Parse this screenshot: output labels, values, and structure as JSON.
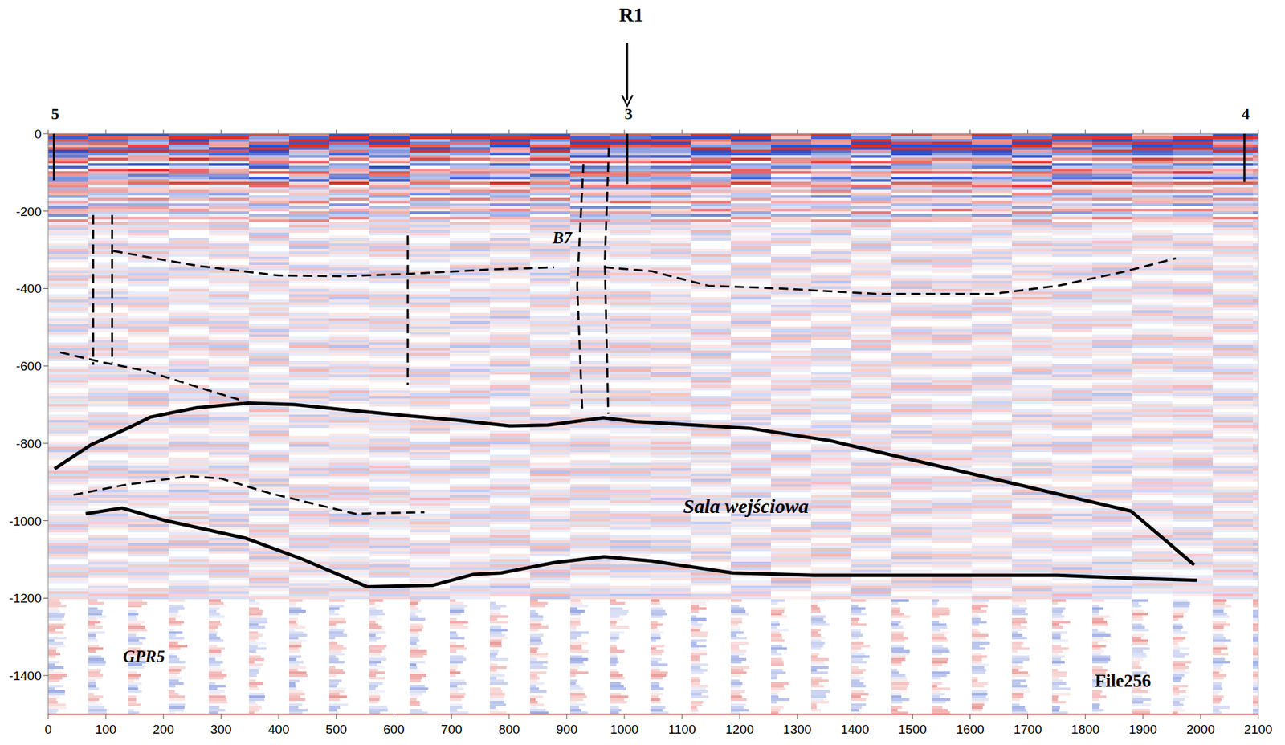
{
  "chart_data": {
    "type": "line",
    "xlim": [
      0,
      2100
    ],
    "ylim": [
      -1500,
      0
    ],
    "xticks": [
      0,
      100,
      200,
      300,
      400,
      500,
      600,
      700,
      800,
      900,
      1000,
      1100,
      1200,
      1300,
      1400,
      1500,
      1600,
      1700,
      1800,
      1900,
      2000,
      2100
    ],
    "yticks": [
      -1400,
      -1200,
      -1000,
      -800,
      -600,
      -400,
      -200,
      0
    ],
    "grid": false,
    "series": [
      {
        "color": "#000000",
        "line_style": "solid",
        "x": [
          11,
          75,
          138,
          178,
          258,
          347,
          427,
          526,
          624,
          709,
          801,
          867,
          963,
          1019,
          1216,
          1357,
          1879,
          1989
        ],
        "values": [
          -866,
          -803,
          -761,
          -732,
          -708,
          -696,
          -700,
          -715,
          -729,
          -740,
          -755,
          -753,
          -734,
          -744,
          -761,
          -793,
          -975,
          -1114
        ]
      },
      {
        "color": "#000000",
        "line_style": "solid",
        "x": [
          65,
          128,
          202,
          342,
          441,
          554,
          667,
          737,
          786,
          878,
          965,
          1047,
          1188,
          1329,
          1611,
          1752,
          1865,
          1994
        ],
        "values": [
          -982,
          -967,
          -999,
          -1045,
          -1099,
          -1171,
          -1167,
          -1139,
          -1135,
          -1108,
          -1093,
          -1104,
          -1135,
          -1141,
          -1141,
          -1141,
          -1148,
          -1154
        ]
      },
      {
        "color": "#000000",
        "line_style": "dashed",
        "x": [
          113,
          258,
          399,
          511,
          624,
          765,
          878
        ],
        "values": [
          -303,
          -341,
          -366,
          -368,
          -362,
          -351,
          -345
        ]
      },
      {
        "color": "#000000",
        "line_style": "dashed",
        "x": [
          965,
          1047,
          1146,
          1259,
          1442,
          1639,
          1752,
          1865,
          1957
        ],
        "values": [
          -345,
          -355,
          -393,
          -399,
          -414,
          -414,
          -393,
          -357,
          -322
        ]
      },
      {
        "color": "#000000",
        "line_style": "dashed",
        "x": [
          21,
          89,
          173,
          258,
          331
        ],
        "values": [
          -565,
          -589,
          -614,
          -654,
          -687
        ]
      },
      {
        "color": "#000000",
        "line_style": "dashed",
        "x": [
          44,
          131,
          244,
          300,
          385,
          533,
          653
        ],
        "values": [
          -933,
          -908,
          -885,
          -891,
          -929,
          -982,
          -978
        ]
      },
      {
        "color": "#000000",
        "line_style": "dashed",
        "x": [
          78,
          78
        ],
        "values": [
          -210,
          -597
        ]
      },
      {
        "color": "#000000",
        "line_style": "dashed",
        "x": [
          111,
          111
        ],
        "values": [
          -210,
          -592
        ]
      },
      {
        "color": "#000000",
        "line_style": "dashed",
        "x": [
          624,
          624
        ],
        "values": [
          -263,
          -650
        ]
      },
      {
        "color": "#000000",
        "line_style": "dashed",
        "x": [
          929,
          918,
          927
        ],
        "values": [
          -78,
          -393,
          -719
        ]
      },
      {
        "color": "#000000",
        "line_style": "dashed",
        "x": [
          973,
          966,
          972
        ],
        "values": [
          -36,
          -330,
          -724
        ]
      }
    ],
    "stations": [
      {
        "label": "5",
        "x": 10,
        "depth": -120
      },
      {
        "label": "3",
        "x": 1005,
        "depth": -130
      },
      {
        "label": "4",
        "x": 2076,
        "depth": -125
      }
    ],
    "profile_marker": {
      "label": "R1",
      "x": 1005
    },
    "annotations": [
      {
        "text": "B7",
        "x": 892,
        "y": -267
      },
      {
        "text": "Sala wejściowa",
        "x": 1211,
        "y": -965
      },
      {
        "text": "GPR5",
        "x": 166,
        "y": -1350
      },
      {
        "text": "File256",
        "x": 1914,
        "y": -1413
      }
    ]
  }
}
